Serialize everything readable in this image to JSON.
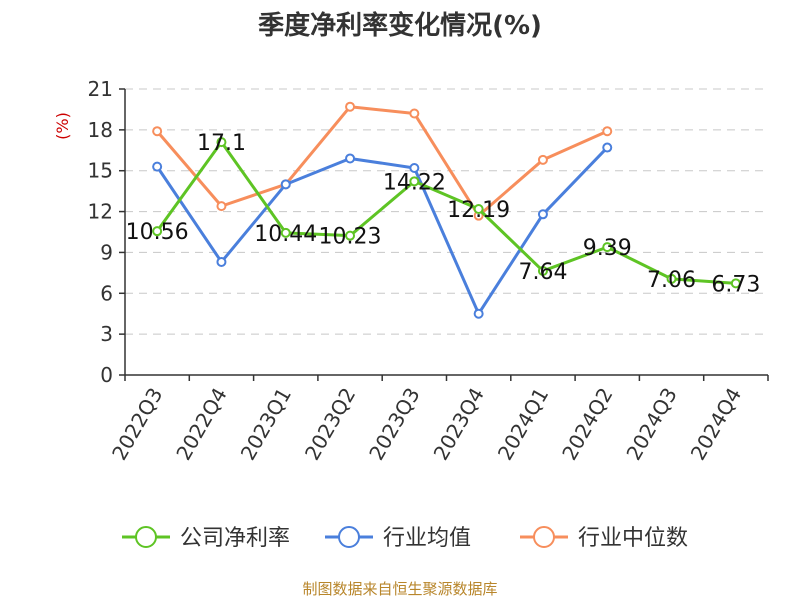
{
  "chart_data": {
    "type": "line",
    "title": "季度净利率变化情况(%)",
    "ylabel": "(%)",
    "xlabel": "",
    "ylim": [
      0,
      21
    ],
    "yticks": [
      0,
      3,
      6,
      9,
      12,
      15,
      18,
      21
    ],
    "categories": [
      "2022Q3",
      "2022Q4",
      "2023Q1",
      "2023Q2",
      "2023Q3",
      "2023Q4",
      "2024Q1",
      "2024Q2",
      "2024Q3",
      "2024Q4"
    ],
    "grid": true,
    "legend": "bottom",
    "series": [
      {
        "name": "公司净利率",
        "color": "#5ec424",
        "values": [
          10.56,
          17.1,
          10.44,
          10.23,
          14.22,
          12.19,
          7.64,
          9.39,
          7.06,
          6.73
        ],
        "labels": [
          "10.56",
          "17.1",
          "10.44",
          "10.23",
          "14.22",
          "12.19",
          "7.64",
          "9.39",
          "7.06",
          "6.73"
        ]
      },
      {
        "name": "行业均值",
        "color": "#4a7fdc",
        "values": [
          15.3,
          8.3,
          14.0,
          15.9,
          15.2,
          4.5,
          11.8,
          16.7,
          null,
          null
        ]
      },
      {
        "name": "行业中位数",
        "color": "#f78e5c",
        "values": [
          17.9,
          12.4,
          14.0,
          19.7,
          19.2,
          11.7,
          15.8,
          17.9,
          null,
          null
        ]
      }
    ]
  },
  "footer": {
    "source": "制图数据来自恒生聚源数据库"
  }
}
